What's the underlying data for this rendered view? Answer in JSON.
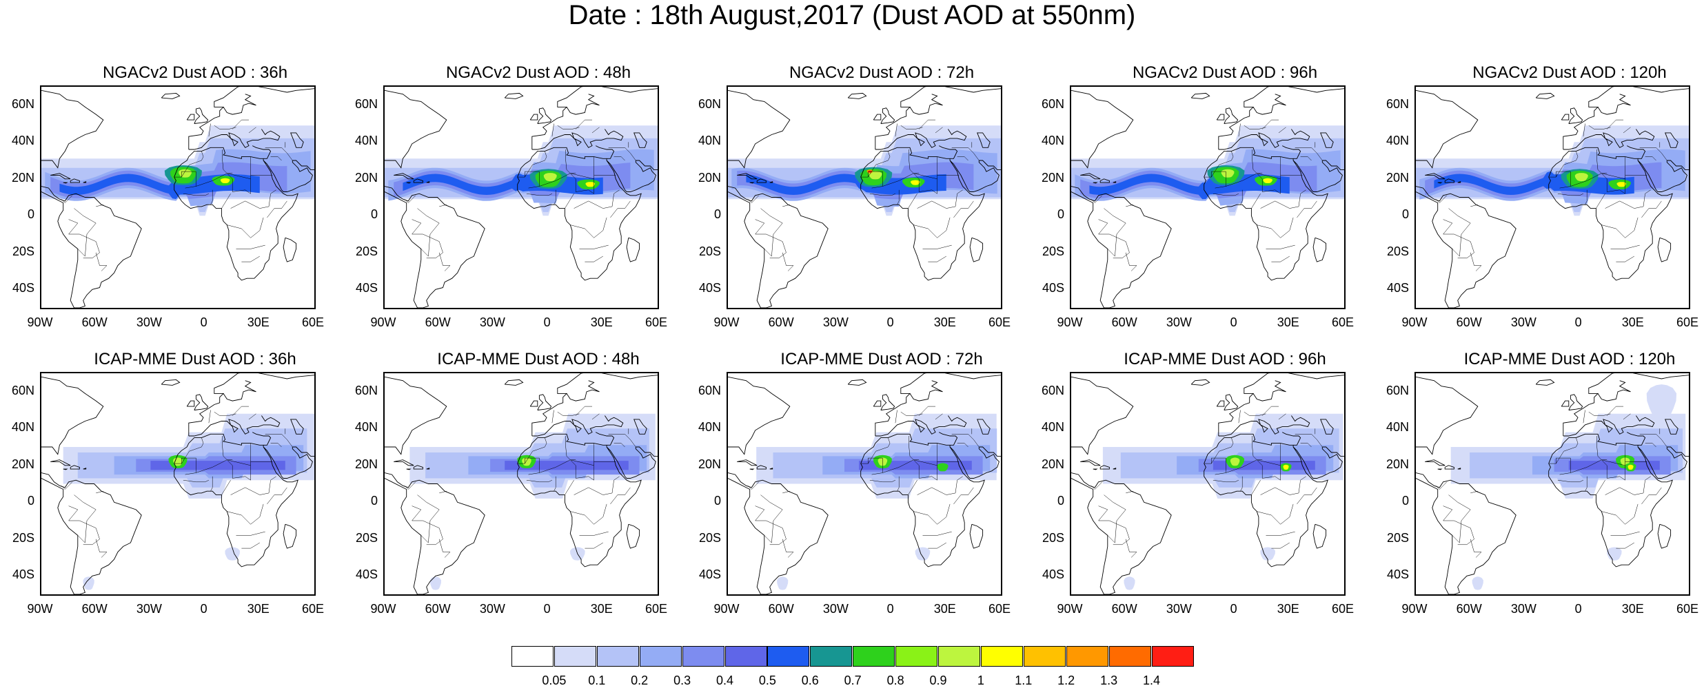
{
  "title": "Date : 18th August,2017 (Dust AOD at 550nm)",
  "lat_labels": [
    "60N",
    "40N",
    "20N",
    "0",
    "20S",
    "40S"
  ],
  "lon_labels": [
    "90W",
    "60W",
    "30W",
    "0",
    "30E",
    "60E"
  ],
  "panels": [
    {
      "title": "NGACv2 Dust AOD : 36h",
      "model": "NGACv2",
      "lead": "36h"
    },
    {
      "title": "NGACv2 Dust AOD : 48h",
      "model": "NGACv2",
      "lead": "48h"
    },
    {
      "title": "NGACv2 Dust AOD : 72h",
      "model": "NGACv2",
      "lead": "72h"
    },
    {
      "title": "NGACv2 Dust AOD : 96h",
      "model": "NGACv2",
      "lead": "96h"
    },
    {
      "title": "NGACv2 Dust AOD : 120h",
      "model": "NGACv2",
      "lead": "120h"
    },
    {
      "title": "ICAP-MME Dust AOD : 36h",
      "model": "ICAP-MME",
      "lead": "36h"
    },
    {
      "title": "ICAP-MME Dust AOD : 48h",
      "model": "ICAP-MME",
      "lead": "48h"
    },
    {
      "title": "ICAP-MME Dust AOD : 72h",
      "model": "ICAP-MME",
      "lead": "72h"
    },
    {
      "title": "ICAP-MME Dust AOD : 96h",
      "model": "ICAP-MME",
      "lead": "96h"
    },
    {
      "title": "ICAP-MME Dust AOD : 120h",
      "model": "ICAP-MME",
      "lead": "120h"
    }
  ],
  "colorbar": {
    "labels": [
      "0.05",
      "0.1",
      "0.2",
      "0.3",
      "0.4",
      "0.5",
      "0.6",
      "0.7",
      "0.8",
      "0.9",
      "1",
      "1.1",
      "1.2",
      "1.3",
      "1.4"
    ],
    "colors": [
      "#ffffff",
      "#d5dcf8",
      "#b4c3f7",
      "#94acf5",
      "#7d8cf0",
      "#5f66e8",
      "#1e5cf0",
      "#179692",
      "#2ed11c",
      "#8af217",
      "#bdf53e",
      "#ffff00",
      "#ffc100",
      "#ff9800",
      "#ff6b00",
      "#ff1e14"
    ]
  }
}
